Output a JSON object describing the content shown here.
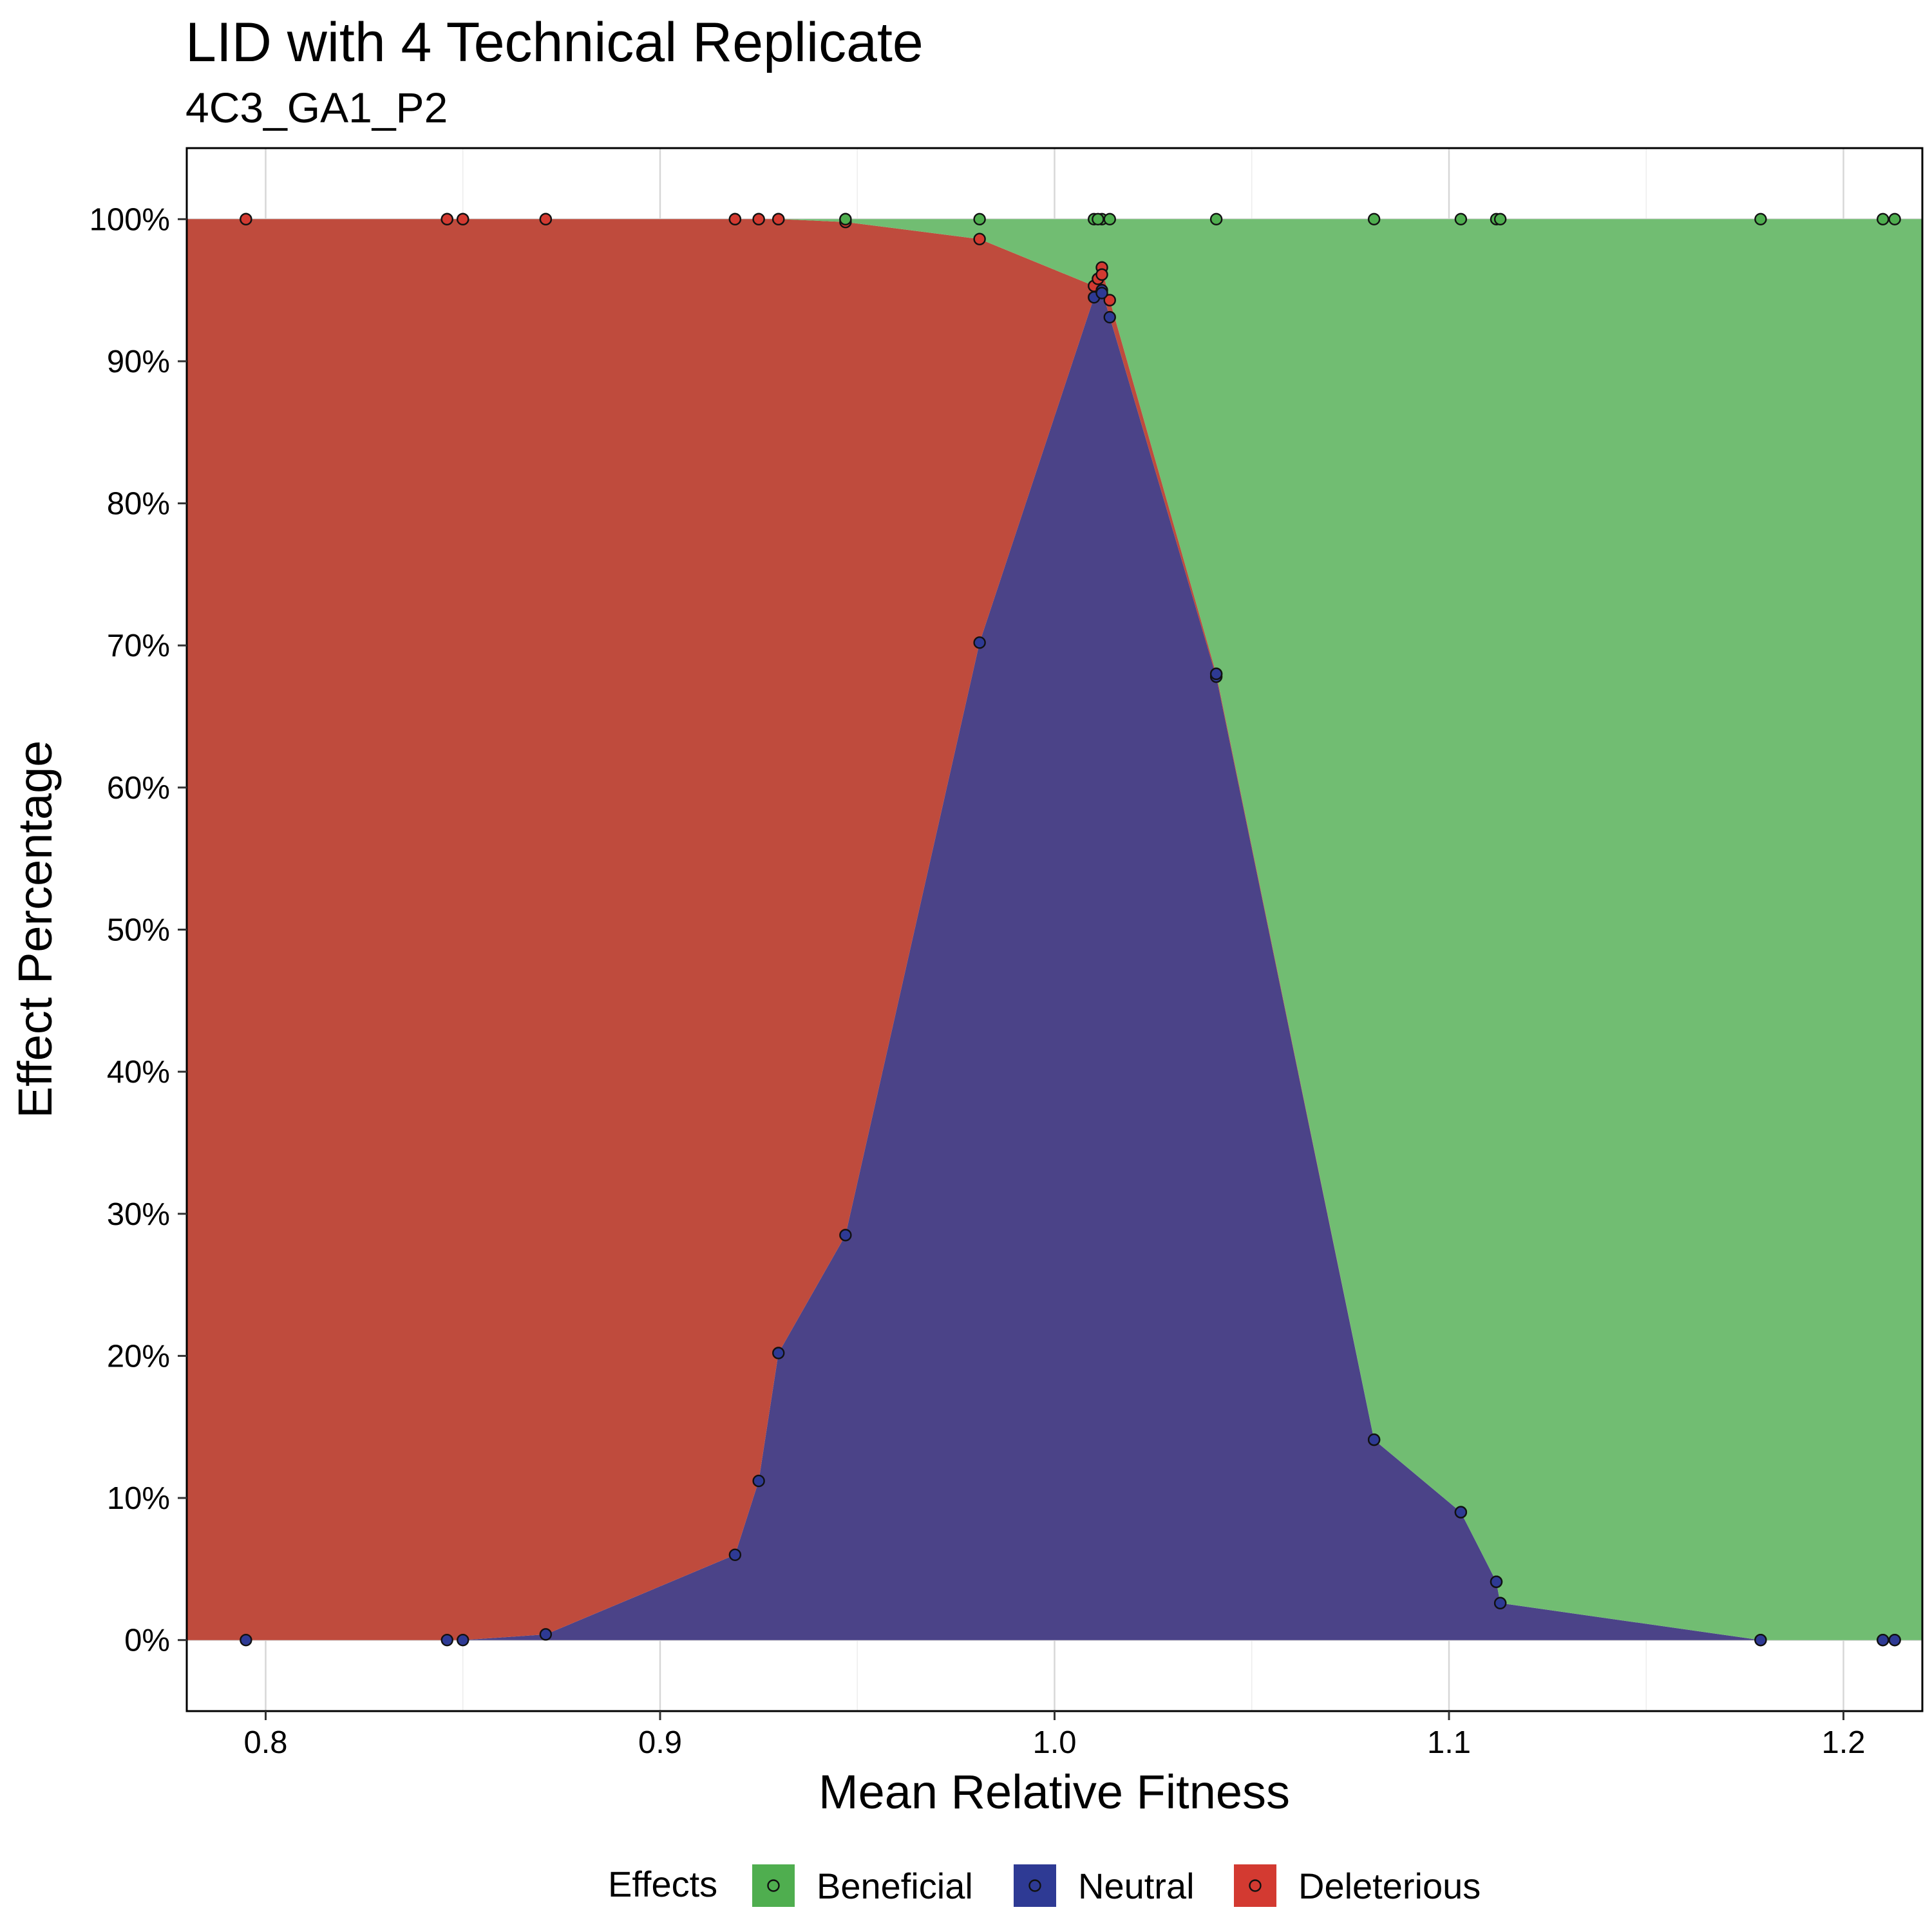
{
  "chart_data": {
    "type": "area",
    "stacking": "percent",
    "title": "LID with 4 Technical Replicate",
    "subtitle": "4C3_GA1_P2",
    "xlabel": "Mean Relative Fitness",
    "ylabel": "Effect Percentage",
    "xlim": [
      0.78,
      1.22
    ],
    "ylim": [
      -0.05,
      1.05
    ],
    "x_ticks": [
      0.8,
      0.9,
      1.0,
      1.1,
      1.2
    ],
    "x_tick_labels": [
      "0.8",
      "0.9",
      "1.0",
      "1.1",
      "1.2"
    ],
    "y_ticks": [
      0,
      0.1,
      0.2,
      0.3,
      0.4,
      0.5,
      0.6,
      0.7,
      0.8,
      0.9,
      1.0
    ],
    "y_tick_labels": [
      "0%",
      "10%",
      "20%",
      "30%",
      "40%",
      "50%",
      "60%",
      "70%",
      "80%",
      "90%",
      "100%"
    ],
    "grid": true,
    "legend": {
      "title": "Effects",
      "position": "bottom",
      "entries": [
        "Beneficial",
        "Neutral",
        "Deleterious"
      ]
    },
    "x": [
      0.795,
      0.846,
      0.85,
      0.871,
      0.919,
      0.925,
      0.93,
      0.947,
      0.981,
      1.01,
      1.012,
      1.014,
      1.041,
      1.081,
      1.103,
      1.112,
      1.113,
      1.179,
      1.21,
      1.213
    ],
    "series": [
      {
        "name": "Neutral",
        "color": "#4b4388",
        "point_fill": "#2e3a94",
        "cum_top": [
          0,
          0,
          0,
          0.004,
          0.06,
          0.112,
          0.202,
          0.285,
          0.702,
          0.945,
          0.95,
          0.931,
          0.678,
          0.141,
          0.09,
          0.041,
          0.026,
          0,
          0,
          0
        ]
      },
      {
        "name": "Deleterious",
        "color": "#bf4b3d",
        "point_fill": "#d33a31",
        "cum_top": [
          1,
          1,
          1,
          1,
          1,
          1,
          1,
          0.998,
          0.986,
          0.953,
          0.966,
          0.943,
          0.68,
          0.141,
          0.09,
          0.041,
          0.026,
          0,
          0,
          0
        ]
      },
      {
        "name": "Beneficial",
        "color": "#71bd72",
        "point_fill": "#4fae4f",
        "cum_top": [
          1,
          1,
          1,
          1,
          1,
          1,
          1,
          1,
          1,
          1,
          1,
          1,
          1,
          1,
          1,
          1,
          1,
          1,
          1,
          1
        ]
      }
    ],
    "extra_points": [
      {
        "series": "Neutral",
        "x": 1.012,
        "y": 0.948
      },
      {
        "series": "Neutral",
        "x": 1.041,
        "y": 0.68
      },
      {
        "series": "Deleterious",
        "x": 1.011,
        "y": 0.958
      },
      {
        "series": "Deleterious",
        "x": 1.012,
        "y": 0.961
      },
      {
        "series": "Beneficial",
        "x": 1.011,
        "y": 1.0
      },
      {
        "series": "Beneficial",
        "x": 0.947,
        "y": 1.0
      }
    ]
  }
}
